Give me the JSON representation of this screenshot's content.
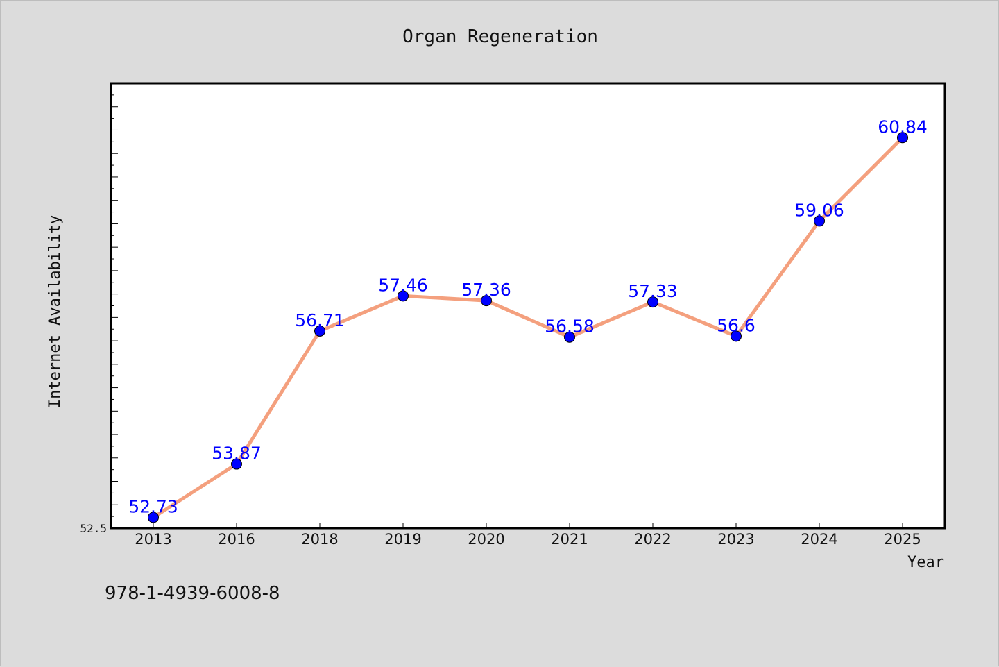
{
  "chart_data": {
    "type": "line",
    "title": "Organ Regeneration",
    "xlabel": "Year",
    "ylabel": "Internet Availability",
    "categories": [
      "2013",
      "2016",
      "2018",
      "2019",
      "2020",
      "2021",
      "2022",
      "2023",
      "2024",
      "2025"
    ],
    "series": [
      {
        "values": [
          52.73,
          53.87,
          56.71,
          57.46,
          57.36,
          56.58,
          57.33,
          56.6,
          59.06,
          60.84
        ],
        "labels": [
          "52.73",
          "53.87",
          "56.71",
          "57.46",
          "57.36",
          "56.58",
          "57.33",
          "56.6",
          "59.06",
          "60.84"
        ]
      }
    ],
    "ylim": [
      52.5,
      62.0
    ],
    "yticks_labeled": [
      "52.5"
    ],
    "grid": false,
    "colors": {
      "line": "#f4a07e",
      "marker": "#0000ff",
      "label": "#0000ff",
      "background": "#dcdcdc",
      "plot_area": "#ffffff"
    }
  },
  "footer": {
    "text": "978-1-4939-6008-8"
  }
}
